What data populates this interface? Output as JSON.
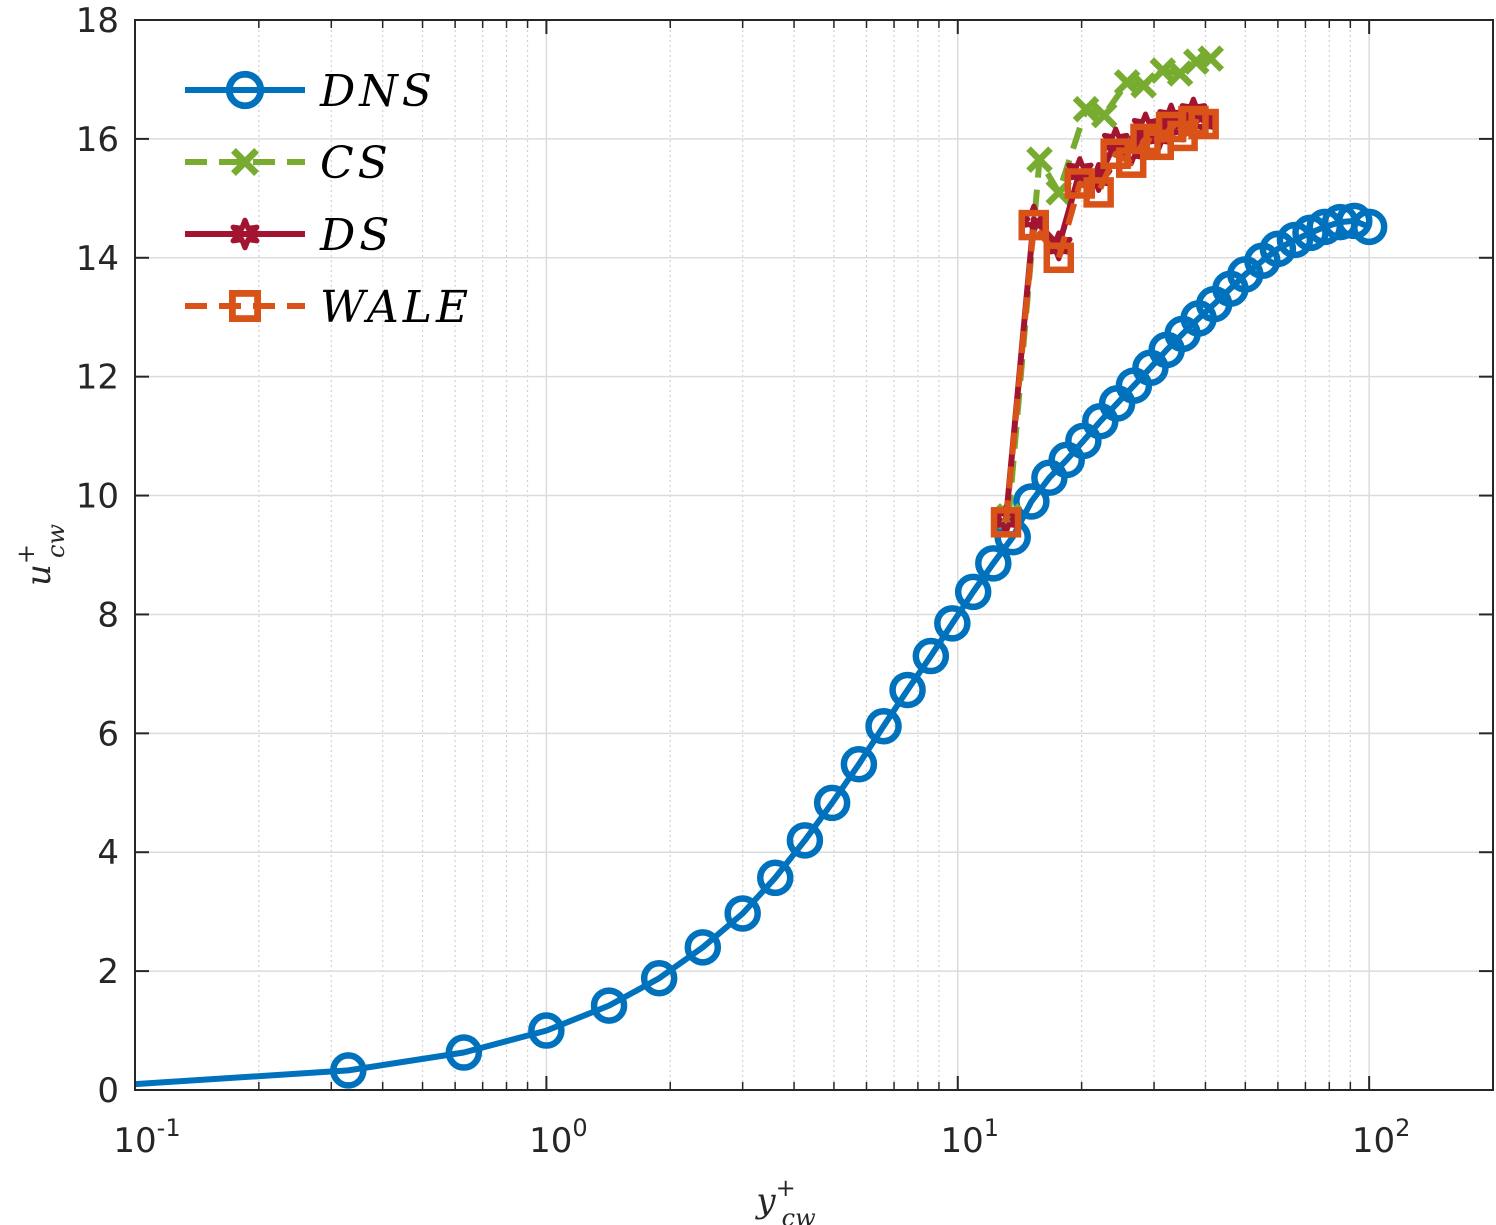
{
  "chart_data": {
    "type": "line",
    "title": "",
    "xscale": "log",
    "xlim": [
      0.1,
      200
    ],
    "ylim": [
      0,
      18
    ],
    "xlabel": {
      "base": "y",
      "sup": "+",
      "sub": "cw"
    },
    "ylabel": {
      "base": "u",
      "sup": "+",
      "sub": "cw"
    },
    "grid": true,
    "minor_grid": true,
    "xticks": [
      0.1,
      1,
      10,
      100
    ],
    "xtick_labels": [
      {
        "base": "10",
        "exp": "-1"
      },
      {
        "base": "10",
        "exp": "0"
      },
      {
        "base": "10",
        "exp": "1"
      },
      {
        "base": "10",
        "exp": "2"
      }
    ],
    "yticks": [
      0,
      2,
      4,
      6,
      8,
      10,
      12,
      14,
      16,
      18
    ],
    "ytick_labels": [
      "0",
      "2",
      "4",
      "6",
      "8",
      "10",
      "12",
      "14",
      "16",
      "18"
    ],
    "legend_position": "top-left",
    "series": [
      {
        "name": "DNS",
        "label": "DNS",
        "color": "#0072BD",
        "line_style": "solid",
        "marker": "circle",
        "x": [
          0.1,
          0.33,
          0.63,
          1.0,
          1.42,
          1.88,
          2.4,
          3.0,
          3.6,
          4.25,
          4.95,
          5.75,
          6.6,
          7.55,
          8.6,
          9.7,
          10.9,
          12.2,
          13.6,
          15.1,
          16.7,
          18.4,
          20.2,
          22.2,
          24.4,
          26.8,
          29.4,
          32.2,
          35.2,
          38.5,
          42,
          46,
          50,
          55,
          60,
          66,
          72,
          78,
          85,
          92,
          100
        ],
        "y": [
          0.1,
          0.33,
          0.63,
          1.0,
          1.42,
          1.88,
          2.4,
          2.97,
          3.57,
          4.2,
          4.83,
          5.48,
          6.12,
          6.73,
          7.3,
          7.85,
          8.38,
          8.86,
          9.3,
          9.9,
          10.3,
          10.6,
          10.92,
          11.25,
          11.55,
          11.85,
          12.15,
          12.45,
          12.72,
          12.98,
          13.22,
          13.48,
          13.72,
          13.95,
          14.15,
          14.3,
          14.42,
          14.52,
          14.6,
          14.62,
          14.52
        ]
      },
      {
        "name": "CS",
        "label": "CS",
        "color": "#77AC30",
        "line_style": "dashed",
        "marker": "x",
        "x": [
          13.3,
          15.8,
          17.6,
          20.5,
          22.7,
          25.8,
          28.3,
          31.5,
          34.7,
          38.0,
          41.2
        ],
        "y": [
          9.65,
          15.65,
          15.1,
          16.5,
          16.4,
          16.95,
          16.9,
          17.15,
          17.1,
          17.3,
          17.35
        ]
      },
      {
        "name": "DS",
        "label": "DS",
        "color": "#A2142F",
        "line_style": "solid",
        "marker": "hexagram",
        "x": [
          13.1,
          15.3,
          17.6,
          19.8,
          22.0,
          24.2,
          26.4,
          28.6,
          30.8,
          33.0,
          35.2,
          37.4,
          39.6
        ],
        "y": [
          9.6,
          14.65,
          14.2,
          15.45,
          15.35,
          15.95,
          15.8,
          16.2,
          16.05,
          16.35,
          16.2,
          16.45,
          16.3
        ]
      },
      {
        "name": "WALE",
        "label": "WALE",
        "color": "#D95319",
        "line_style": "dashed",
        "marker": "square",
        "x": [
          13.1,
          15.3,
          17.6,
          19.8,
          22.0,
          24.2,
          26.4,
          28.6,
          30.8,
          33.0,
          35.2,
          37.4,
          39.6
        ],
        "y": [
          9.55,
          14.55,
          14.0,
          15.25,
          15.1,
          15.75,
          15.6,
          16.0,
          15.9,
          16.2,
          16.05,
          16.3,
          16.25
        ]
      }
    ]
  }
}
